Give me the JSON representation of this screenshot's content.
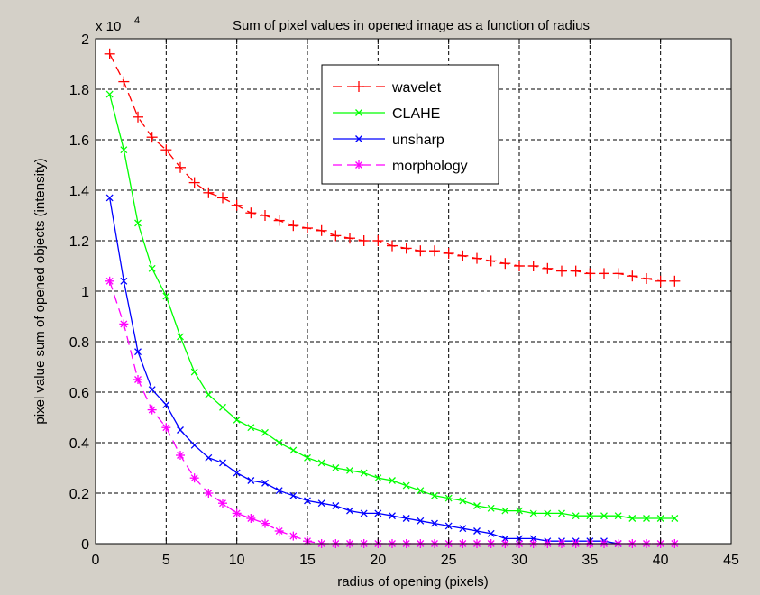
{
  "chart_data": {
    "type": "line",
    "title": "Sum of pixel values in opened image as a function of radius",
    "xlabel": "radius of opening (pixels)",
    "ylabel": "pixel value sum of opened objects (intensity)",
    "y_scale_prefix": "x 10",
    "y_scale_exponent": "4",
    "xlim": [
      0,
      45
    ],
    "ylim": [
      0,
      2
    ],
    "x_ticks": [
      0,
      5,
      10,
      15,
      20,
      25,
      30,
      35,
      40,
      45
    ],
    "x_tick_labels": [
      "0",
      "5",
      "10",
      "15",
      "20",
      "25",
      "30",
      "35",
      "40",
      "45"
    ],
    "y_ticks": [
      0,
      0.2,
      0.4,
      0.6,
      0.8,
      1,
      1.2,
      1.4,
      1.6,
      1.8,
      2
    ],
    "y_tick_labels": [
      "0",
      "0.2",
      "0.4",
      "0.6",
      "0.8",
      "1",
      "1.2",
      "1.4",
      "1.6",
      "1.8",
      "2"
    ],
    "grid": true,
    "legend_position": "top-center",
    "series": [
      {
        "name": "wavelet",
        "color": "#ff0000",
        "line_style": "dashed",
        "marker": "plus",
        "x": [
          1,
          2,
          3,
          4,
          5,
          6,
          7,
          8,
          9,
          10,
          11,
          12,
          13,
          14,
          15,
          16,
          17,
          18,
          19,
          20,
          21,
          22,
          23,
          24,
          25,
          26,
          27,
          28,
          29,
          30,
          31,
          32,
          33,
          34,
          35,
          36,
          37,
          38,
          39,
          40,
          41
        ],
        "y": [
          1.94,
          1.83,
          1.69,
          1.61,
          1.56,
          1.49,
          1.43,
          1.39,
          1.37,
          1.34,
          1.31,
          1.3,
          1.28,
          1.26,
          1.25,
          1.24,
          1.22,
          1.21,
          1.2,
          1.2,
          1.18,
          1.17,
          1.16,
          1.16,
          1.15,
          1.14,
          1.13,
          1.12,
          1.11,
          1.1,
          1.1,
          1.09,
          1.08,
          1.08,
          1.07,
          1.07,
          1.07,
          1.06,
          1.05,
          1.04,
          1.04
        ]
      },
      {
        "name": "CLAHE",
        "color": "#00ff00",
        "line_style": "solid",
        "marker": "x",
        "x": [
          1,
          2,
          3,
          4,
          5,
          6,
          7,
          8,
          9,
          10,
          11,
          12,
          13,
          14,
          15,
          16,
          17,
          18,
          19,
          20,
          21,
          22,
          23,
          24,
          25,
          26,
          27,
          28,
          29,
          30,
          31,
          32,
          33,
          34,
          35,
          36,
          37,
          38,
          39,
          40,
          41
        ],
        "y": [
          1.78,
          1.56,
          1.27,
          1.09,
          0.98,
          0.82,
          0.68,
          0.59,
          0.54,
          0.49,
          0.46,
          0.44,
          0.4,
          0.37,
          0.34,
          0.32,
          0.3,
          0.29,
          0.28,
          0.26,
          0.25,
          0.23,
          0.21,
          0.19,
          0.18,
          0.17,
          0.15,
          0.14,
          0.13,
          0.13,
          0.12,
          0.12,
          0.12,
          0.11,
          0.11,
          0.11,
          0.11,
          0.1,
          0.1,
          0.1,
          0.1
        ]
      },
      {
        "name": "unsharp",
        "color": "#0000ff",
        "line_style": "solid",
        "marker": "x",
        "x": [
          1,
          2,
          3,
          4,
          5,
          6,
          7,
          8,
          9,
          10,
          11,
          12,
          13,
          14,
          15,
          16,
          17,
          18,
          19,
          20,
          21,
          22,
          23,
          24,
          25,
          26,
          27,
          28,
          29,
          30,
          31,
          32,
          33,
          34,
          35,
          36,
          37
        ],
        "y": [
          1.37,
          1.04,
          0.76,
          0.61,
          0.55,
          0.45,
          0.39,
          0.34,
          0.32,
          0.28,
          0.25,
          0.24,
          0.21,
          0.19,
          0.17,
          0.16,
          0.15,
          0.13,
          0.12,
          0.12,
          0.11,
          0.1,
          0.09,
          0.08,
          0.07,
          0.06,
          0.05,
          0.04,
          0.02,
          0.02,
          0.02,
          0.01,
          0.01,
          0.01,
          0.01,
          0.01,
          0.0
        ]
      },
      {
        "name": "morphology",
        "color": "#ff00ff",
        "line_style": "dashed",
        "marker": "star",
        "x": [
          1,
          2,
          3,
          4,
          5,
          6,
          7,
          8,
          9,
          10,
          11,
          12,
          13,
          14,
          15,
          16,
          17,
          18,
          19,
          20,
          21,
          22,
          23,
          24,
          25,
          26,
          27,
          28,
          29,
          30,
          31,
          32,
          33,
          34,
          35,
          36,
          37,
          38,
          39,
          40,
          41
        ],
        "y": [
          1.04,
          0.87,
          0.65,
          0.53,
          0.46,
          0.35,
          0.26,
          0.2,
          0.16,
          0.12,
          0.1,
          0.08,
          0.05,
          0.03,
          0.01,
          0,
          0,
          0,
          0,
          0,
          0,
          0,
          0,
          0,
          0,
          0,
          0,
          0,
          0,
          0,
          0,
          0,
          0,
          0,
          0,
          0,
          0,
          0,
          0,
          0,
          0
        ]
      }
    ]
  }
}
